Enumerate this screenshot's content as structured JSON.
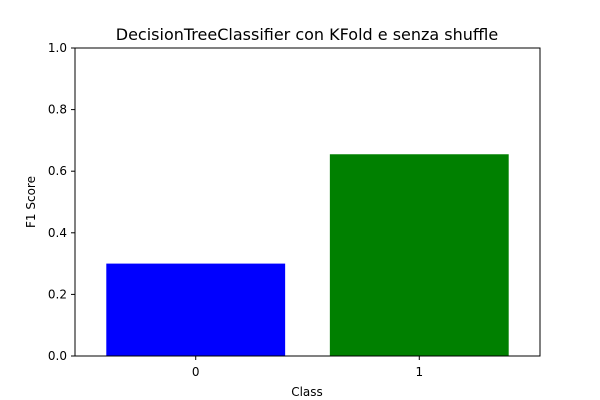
{
  "chart_data": {
    "type": "bar",
    "title": "DecisionTreeClassifier  con KFold e senza shuffle",
    "xlabel": "Class",
    "ylabel": "F1 Score",
    "categories": [
      "0",
      "1"
    ],
    "values": [
      0.3,
      0.655
    ],
    "bar_colors": [
      "#0000ff",
      "#008000"
    ],
    "ylim": [
      0,
      1.0
    ],
    "yticks": [
      "0.0",
      "0.2",
      "0.4",
      "0.6",
      "0.8",
      "1.0"
    ],
    "grid": false,
    "legend": "none"
  }
}
